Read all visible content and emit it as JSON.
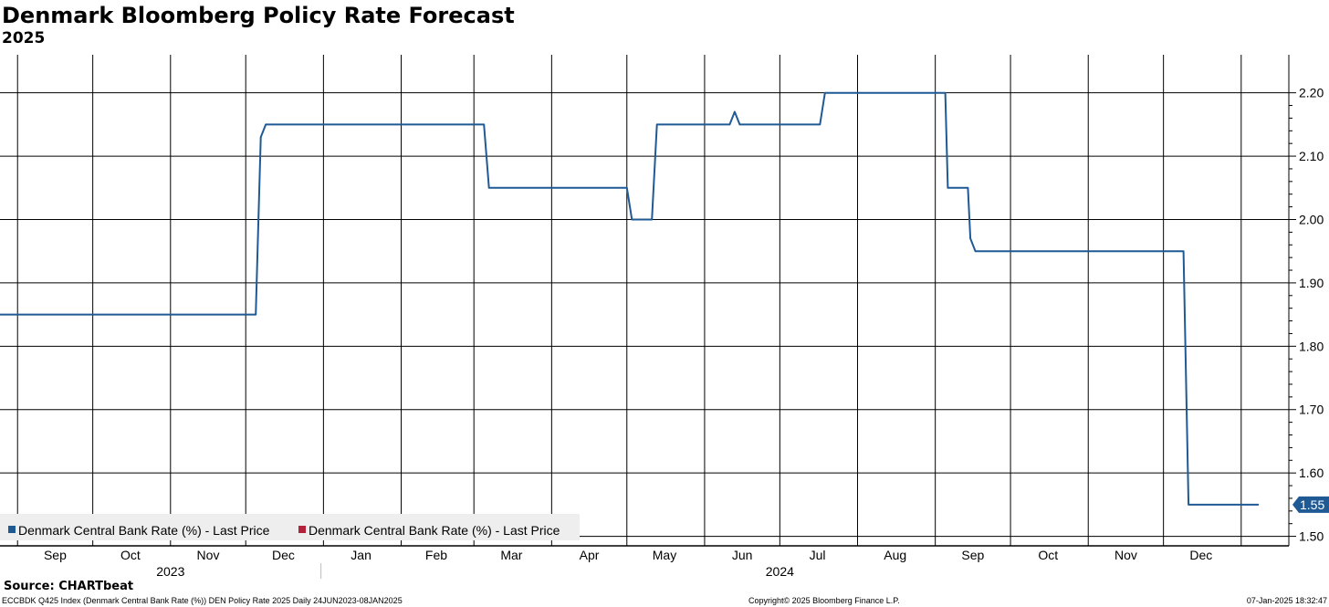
{
  "chart_data": {
    "type": "line",
    "title": "Denmark Bloomberg Policy Rate Forecast",
    "subtitle": "2025",
    "ylim": [
      1.485,
      2.26
    ],
    "y_ticks": [
      1.5,
      1.6,
      1.7,
      1.8,
      1.9,
      2.0,
      2.1,
      2.2
    ],
    "y_tick_labels": [
      "1.50",
      "1.60",
      "1.70",
      "1.80",
      "1.90",
      "2.00",
      "2.10",
      "2.20"
    ],
    "x_range": [
      "2023-08-25",
      "2025-01-20"
    ],
    "month_labels": [
      {
        "label": "Sep",
        "date": "2023-09-16"
      },
      {
        "label": "Oct",
        "date": "2023-10-16"
      },
      {
        "label": "Nov",
        "date": "2023-11-16"
      },
      {
        "label": "Dec",
        "date": "2023-12-16"
      },
      {
        "label": "Jan",
        "date": "2024-01-16"
      },
      {
        "label": "Feb",
        "date": "2024-02-15"
      },
      {
        "label": "Mar",
        "date": "2024-03-16"
      },
      {
        "label": "Apr",
        "date": "2024-04-16"
      },
      {
        "label": "May",
        "date": "2024-05-16"
      },
      {
        "label": "Jun",
        "date": "2024-06-16"
      },
      {
        "label": "Jul",
        "date": "2024-07-16"
      },
      {
        "label": "Aug",
        "date": "2024-08-16"
      },
      {
        "label": "Sep",
        "date": "2024-09-16"
      },
      {
        "label": "Oct",
        "date": "2024-10-16"
      },
      {
        "label": "Nov",
        "date": "2024-11-16"
      },
      {
        "label": "Dec",
        "date": "2024-12-16"
      }
    ],
    "grid_dates": [
      "2023-09-01",
      "2023-10-01",
      "2023-11-01",
      "2023-12-01",
      "2024-01-01",
      "2024-02-01",
      "2024-03-01",
      "2024-04-01",
      "2024-05-01",
      "2024-06-01",
      "2024-07-01",
      "2024-08-01",
      "2024-09-01",
      "2024-10-01",
      "2024-11-01",
      "2024-12-01",
      "2025-01-01"
    ],
    "year_labels": [
      {
        "label": "2023",
        "date": "2023-11-01"
      },
      {
        "label": "2024",
        "date": "2024-07-01"
      }
    ],
    "year_divider_date": "2023-12-31",
    "series": [
      {
        "name": "Denmark Central Bank Rate (%) - Last Price",
        "color": "#1f5a94",
        "points": [
          {
            "x": "2023-08-25",
            "y": 1.85
          },
          {
            "x": "2023-12-05",
            "y": 1.85
          },
          {
            "x": "2023-12-07",
            "y": 2.13
          },
          {
            "x": "2023-12-09",
            "y": 2.15
          },
          {
            "x": "2024-03-05",
            "y": 2.15
          },
          {
            "x": "2024-03-07",
            "y": 2.05
          },
          {
            "x": "2024-05-01",
            "y": 2.05
          },
          {
            "x": "2024-05-03",
            "y": 2.0
          },
          {
            "x": "2024-05-11",
            "y": 2.0
          },
          {
            "x": "2024-05-13",
            "y": 2.15
          },
          {
            "x": "2024-06-11",
            "y": 2.15
          },
          {
            "x": "2024-06-13",
            "y": 2.17
          },
          {
            "x": "2024-06-15",
            "y": 2.15
          },
          {
            "x": "2024-07-17",
            "y": 2.15
          },
          {
            "x": "2024-07-19",
            "y": 2.2
          },
          {
            "x": "2024-09-05",
            "y": 2.2
          },
          {
            "x": "2024-09-06",
            "y": 2.05
          },
          {
            "x": "2024-09-14",
            "y": 2.05
          },
          {
            "x": "2024-09-15",
            "y": 1.97
          },
          {
            "x": "2024-09-17",
            "y": 1.95
          },
          {
            "x": "2024-12-09",
            "y": 1.95
          },
          {
            "x": "2024-12-11",
            "y": 1.55
          },
          {
            "x": "2025-01-08",
            "y": 1.55
          }
        ]
      },
      {
        "name": "Denmark Central Bank Rate (%) - Last Price",
        "color": "#b3213a",
        "points": []
      }
    ],
    "last_value_label": "1.55",
    "grid": true,
    "legend_position": "bottom-left"
  },
  "source": "Source: CHARTbeat",
  "footer": {
    "left": "ECCBDK Q425 Index (Denmark Central Bank Rate (%)) DEN Policy Rate 2025  Daily 24JUN2023-08JAN2025",
    "center": "Copyright© 2025 Bloomberg Finance L.P.",
    "right": "07-Jan-2025 18:32:47"
  }
}
